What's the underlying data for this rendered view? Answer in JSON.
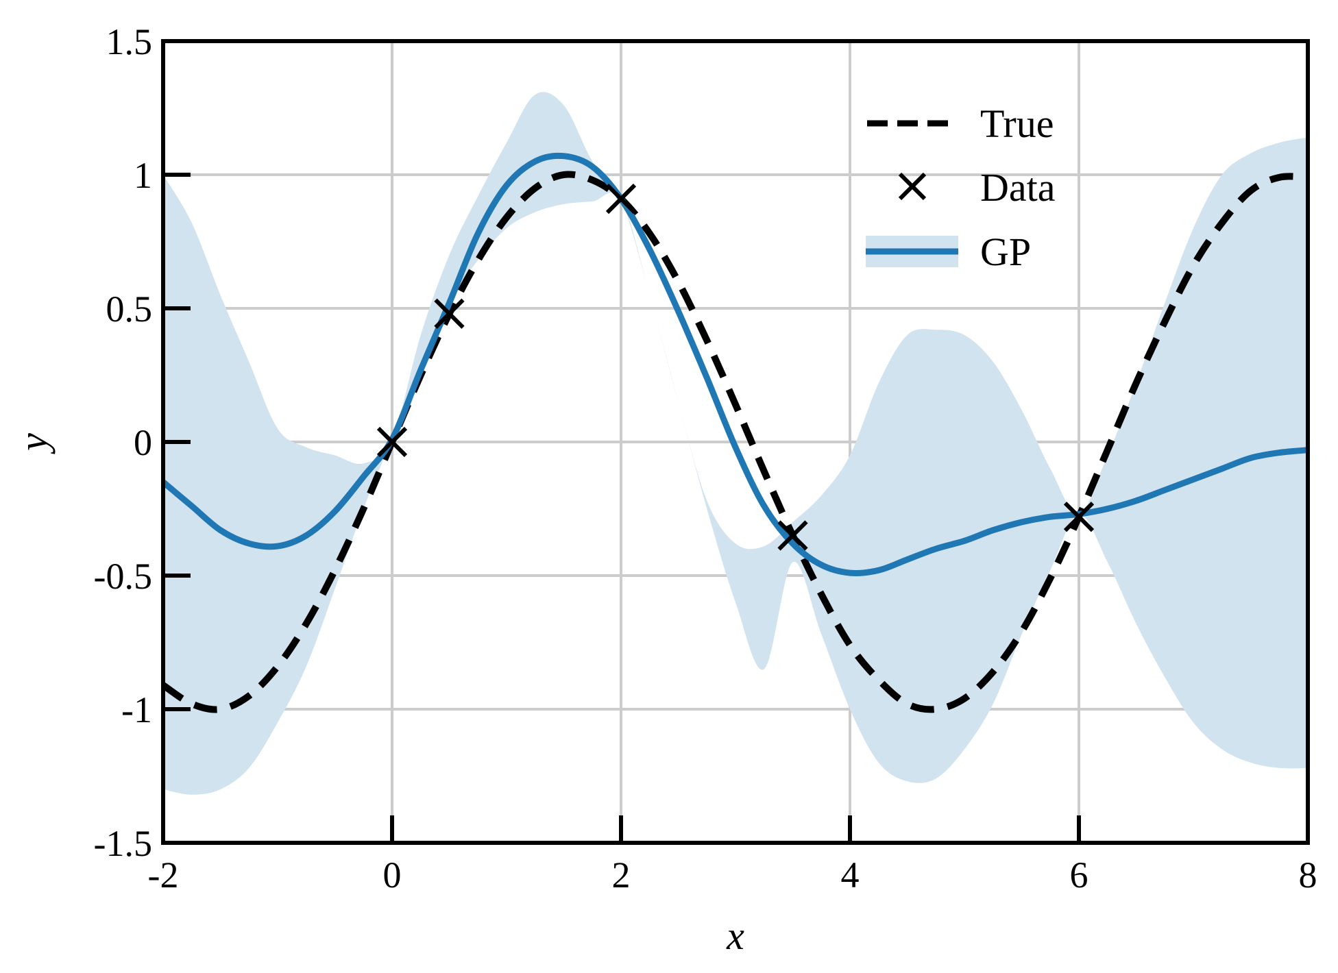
{
  "chart_data": {
    "type": "line",
    "xlabel": "x",
    "ylabel": "y",
    "xlim": [
      -2,
      8
    ],
    "ylim": [
      -1.5,
      1.5
    ],
    "xticks": [
      -2,
      0,
      2,
      4,
      6,
      8
    ],
    "xtick_labels": [
      "-2",
      "0",
      "2",
      "4",
      "6",
      "8"
    ],
    "yticks": [
      -1.5,
      -1,
      -0.5,
      0,
      0.5,
      1,
      1.5
    ],
    "ytick_labels": [
      "-1.5",
      "-1",
      "-0.5",
      "0",
      "0.5",
      "1",
      "1.5"
    ],
    "grid": true,
    "legend_position": "top-right",
    "legend": [
      "True",
      "Data",
      "GP"
    ],
    "colors": {
      "gp": "#1f77b4",
      "band": "#d2e3f0",
      "true": "#000000",
      "grid": "#cccccc"
    },
    "series": [
      {
        "name": "True",
        "style": "dashed",
        "x": [
          -2,
          -1.75,
          -1.5,
          -1.25,
          -1,
          -0.75,
          -0.5,
          -0.25,
          0,
          0.25,
          0.5,
          0.75,
          1,
          1.25,
          1.5,
          1.75,
          2,
          2.25,
          2.5,
          2.75,
          3,
          3.25,
          3.5,
          3.75,
          4,
          4.25,
          4.5,
          4.75,
          5,
          5.25,
          5.5,
          5.75,
          6,
          6.25,
          6.5,
          6.75,
          7,
          7.25,
          7.5,
          7.75,
          8
        ],
        "y": [
          -0.91,
          -0.98,
          -1.0,
          -0.95,
          -0.84,
          -0.68,
          -0.48,
          -0.25,
          0.0,
          0.25,
          0.48,
          0.68,
          0.84,
          0.95,
          1.0,
          0.98,
          0.91,
          0.78,
          0.6,
          0.38,
          0.14,
          -0.11,
          -0.35,
          -0.57,
          -0.76,
          -0.89,
          -0.98,
          -1.0,
          -0.96,
          -0.86,
          -0.71,
          -0.51,
          -0.28,
          -0.03,
          0.22,
          0.45,
          0.66,
          0.82,
          0.94,
          0.99,
          0.99
        ]
      },
      {
        "name": "Data",
        "style": "markers",
        "x": [
          0,
          0.5,
          2,
          3.5,
          6
        ],
        "y": [
          0.0,
          0.48,
          0.91,
          -0.35,
          -0.28
        ]
      },
      {
        "name": "GP",
        "style": "solid",
        "x": [
          -2,
          -1.75,
          -1.5,
          -1.25,
          -1,
          -0.75,
          -0.5,
          -0.25,
          0,
          0.25,
          0.5,
          0.75,
          1,
          1.25,
          1.5,
          1.75,
          2,
          2.25,
          2.5,
          2.75,
          3,
          3.25,
          3.5,
          3.75,
          4,
          4.25,
          4.5,
          4.75,
          5,
          5.25,
          5.5,
          5.75,
          6,
          6.25,
          6.5,
          6.75,
          7,
          7.25,
          7.5,
          7.75,
          8
        ],
        "y": [
          -0.15,
          -0.24,
          -0.33,
          -0.38,
          -0.39,
          -0.35,
          -0.26,
          -0.13,
          0.01,
          0.27,
          0.52,
          0.78,
          0.96,
          1.05,
          1.07,
          1.03,
          0.91,
          0.72,
          0.49,
          0.24,
          -0.02,
          -0.24,
          -0.38,
          -0.46,
          -0.49,
          -0.48,
          -0.44,
          -0.4,
          -0.37,
          -0.33,
          -0.3,
          -0.28,
          -0.27,
          -0.25,
          -0.22,
          -0.18,
          -0.14,
          -0.1,
          -0.06,
          -0.04,
          -0.03
        ],
        "upper": [
          1.0,
          0.82,
          0.55,
          0.3,
          0.05,
          -0.02,
          -0.05,
          -0.08,
          0.01,
          0.4,
          0.7,
          0.92,
          1.12,
          1.3,
          1.26,
          1.05,
          0.91,
          0.55,
          0.15,
          -0.22,
          -0.38,
          -0.39,
          -0.3,
          -0.2,
          -0.05,
          0.22,
          0.4,
          0.42,
          0.4,
          0.3,
          0.12,
          -0.1,
          -0.27,
          -0.05,
          0.22,
          0.52,
          0.8,
          1.0,
          1.08,
          1.12,
          1.14
        ],
        "lower": [
          -1.3,
          -1.32,
          -1.3,
          -1.22,
          -1.05,
          -0.84,
          -0.55,
          -0.25,
          0.01,
          0.25,
          0.52,
          0.68,
          0.8,
          0.86,
          0.89,
          0.9,
          0.91,
          0.55,
          0.15,
          -0.25,
          -0.6,
          -0.85,
          -0.45,
          -0.72,
          -1.0,
          -1.2,
          -1.27,
          -1.26,
          -1.15,
          -0.98,
          -0.72,
          -0.48,
          -0.27,
          -0.45,
          -0.68,
          -0.88,
          -1.05,
          -1.15,
          -1.2,
          -1.22,
          -1.22
        ]
      }
    ]
  }
}
